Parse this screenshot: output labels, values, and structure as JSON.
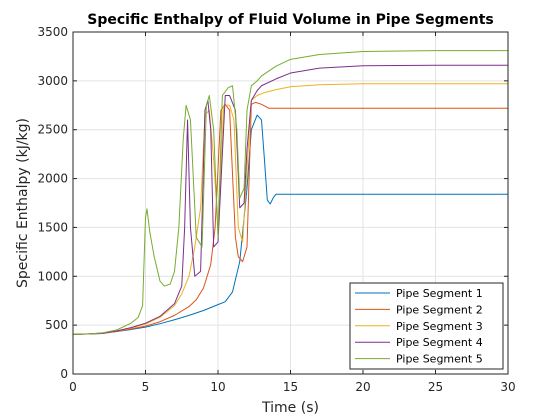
{
  "chart_data": {
    "type": "line",
    "title": "Specific Enthalpy of Fluid Volume in Pipe Segments",
    "xlabel": "Time (s)",
    "ylabel": "Specific Enthalpy (kJ/kg)",
    "xlim": [
      0,
      30
    ],
    "ylim": [
      0,
      3500
    ],
    "xticks": [
      0,
      5,
      10,
      15,
      20,
      25,
      30
    ],
    "yticks": [
      0,
      500,
      1000,
      1500,
      2000,
      2500,
      3000,
      3500
    ],
    "grid": true,
    "legend_position": "bottom-right",
    "series": [
      {
        "name": "Pipe Segment 1",
        "color": "#0072BD",
        "x": [
          0,
          1,
          2,
          3,
          4,
          5,
          6,
          7,
          8,
          9,
          10,
          10.5,
          11,
          11.5,
          12,
          12.3,
          12.7,
          13,
          13.2,
          13.4,
          13.6,
          13.8,
          14,
          14.3,
          15,
          20,
          25,
          30
        ],
        "y": [
          405,
          410,
          420,
          435,
          455,
          480,
          515,
          555,
          600,
          650,
          710,
          740,
          840,
          1150,
          1900,
          2500,
          2650,
          2600,
          2200,
          1780,
          1740,
          1800,
          1840,
          1840,
          1840,
          1840,
          1840,
          1840
        ]
      },
      {
        "name": "Pipe Segment 2",
        "color": "#D95319",
        "x": [
          0,
          2,
          3,
          4,
          5,
          6,
          7,
          8,
          8.5,
          9,
          9.5,
          9.8,
          10.2,
          10.5,
          10.8,
          11.2,
          11.4,
          11.7,
          12,
          12.3,
          12.6,
          13,
          13.5,
          14,
          20,
          30
        ],
        "y": [
          405,
          415,
          435,
          460,
          490,
          535,
          600,
          690,
          760,
          880,
          1120,
          1500,
          2700,
          2760,
          2700,
          1400,
          1200,
          1150,
          1300,
          2760,
          2780,
          2760,
          2720,
          2720,
          2720,
          2720
        ]
      },
      {
        "name": "Pipe Segment 3",
        "color": "#EDB120",
        "x": [
          0,
          2,
          3,
          4,
          5,
          6,
          7,
          7.5,
          8,
          8.4,
          8.8,
          9.1,
          9.4,
          9.7,
          10,
          10.4,
          10.8,
          11.1,
          11.4,
          11.7,
          12,
          12.3,
          12.7,
          13.2,
          14,
          15,
          17,
          20,
          25,
          30
        ],
        "y": [
          405,
          415,
          440,
          470,
          510,
          580,
          700,
          820,
          1000,
          1300,
          1700,
          2650,
          2700,
          2200,
          1500,
          2750,
          2750,
          2600,
          1500,
          1350,
          2100,
          2800,
          2850,
          2880,
          2910,
          2940,
          2960,
          2970,
          2970,
          2970
        ]
      },
      {
        "name": "Pipe Segment 4",
        "color": "#7E2F8E",
        "x": [
          0,
          2,
          3,
          4,
          5,
          6,
          7,
          7.5,
          7.7,
          7.9,
          8.1,
          8.4,
          8.8,
          9.1,
          9.3,
          9.5,
          9.7,
          10,
          10.5,
          10.8,
          11.2,
          11.5,
          11.8,
          12,
          12.3,
          12.7,
          13,
          14,
          15,
          17,
          20,
          25,
          30
        ],
        "y": [
          405,
          415,
          440,
          475,
          520,
          590,
          720,
          900,
          1500,
          2600,
          1500,
          1000,
          1050,
          2700,
          2800,
          2500,
          1300,
          1350,
          2850,
          2850,
          2700,
          1700,
          1750,
          2300,
          2800,
          2900,
          2950,
          3020,
          3080,
          3130,
          3155,
          3160,
          3160
        ]
      },
      {
        "name": "Pipe Segment 5",
        "color": "#77AC30",
        "x": [
          0,
          1,
          2,
          3,
          4,
          4.5,
          4.8,
          5,
          5.1,
          5.3,
          5.6,
          6,
          6.3,
          6.7,
          7,
          7.3,
          7.6,
          7.8,
          8.1,
          8.5,
          8.9,
          9.2,
          9.4,
          9.7,
          10,
          10.3,
          10.7,
          11,
          11.3,
          11.5,
          11.8,
          12,
          12.3,
          12.7,
          13,
          14,
          15,
          17,
          20,
          25,
          30
        ],
        "y": [
          405,
          410,
          420,
          450,
          520,
          580,
          700,
          1600,
          1690,
          1450,
          1200,
          950,
          900,
          920,
          1050,
          1500,
          2400,
          2750,
          2600,
          1400,
          1300,
          2750,
          2850,
          2500,
          1400,
          2850,
          2930,
          2950,
          2500,
          1800,
          1900,
          2700,
          2950,
          3000,
          3050,
          3150,
          3220,
          3270,
          3300,
          3310,
          3310
        ]
      }
    ]
  }
}
